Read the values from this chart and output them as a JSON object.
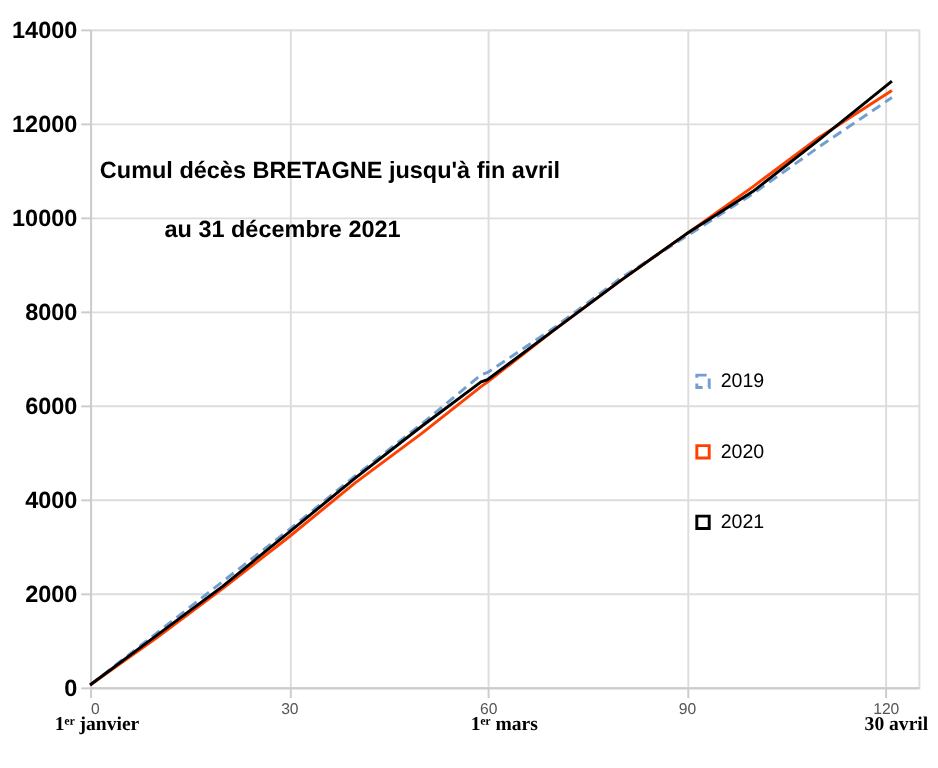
{
  "chart_data": {
    "type": "line",
    "title": "Cumul décès BRETAGNE jusqu'à fin avril",
    "subtitle": "au 31 décembre 2021",
    "x": [
      0,
      10,
      20,
      30,
      40,
      50,
      59,
      60,
      70,
      80,
      90,
      100,
      110,
      121
    ],
    "series": [
      {
        "name": "2019",
        "color": "#729fcf",
        "line_style": "dashed",
        "values": [
          50,
          1150,
          2250,
          3350,
          4500,
          5600,
          6650,
          6700,
          7650,
          8700,
          9600,
          10500,
          11500,
          12550
        ]
      },
      {
        "name": "2020",
        "color": "#ff4000",
        "line_style": "solid",
        "values": [
          50,
          1050,
          2100,
          3200,
          4350,
          5400,
          6400,
          6500,
          7600,
          8650,
          9650,
          10650,
          11700,
          12700
        ]
      },
      {
        "name": "2021",
        "color": "#000000",
        "line_style": "solid",
        "values": [
          50,
          1100,
          2150,
          3300,
          4450,
          5550,
          6500,
          6550,
          7600,
          8650,
          9650,
          10550,
          11650,
          12900
        ]
      }
    ],
    "xlim": [
      0,
      125
    ],
    "xticks": [
      0,
      30,
      60,
      90,
      120
    ],
    "ylim": [
      0,
      14000
    ],
    "yticks": [
      0,
      2000,
      4000,
      6000,
      8000,
      10000,
      12000,
      14000
    ],
    "grid": true,
    "legend": "right",
    "annotations": [
      "1ᵉʳ janvier",
      "1ᵉʳ mars",
      "30 avril"
    ]
  }
}
